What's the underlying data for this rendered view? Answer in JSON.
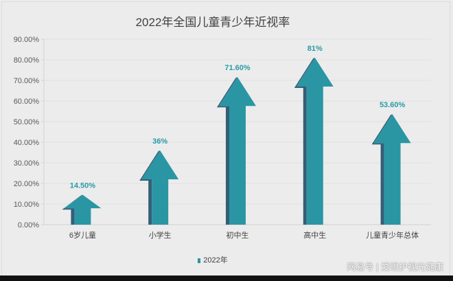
{
  "chart_data": {
    "type": "bar",
    "style": "3d-arrow",
    "title": "2022年全国儿童青少年近视率",
    "categories": [
      "6岁儿童",
      "小学生",
      "初中生",
      "高中生",
      "儿童青少年总体"
    ],
    "series": [
      {
        "name": "2022年",
        "values": [
          14.5,
          36,
          71.6,
          81,
          53.6
        ],
        "color": "#2a96a3"
      }
    ],
    "data_labels": [
      "14.50%",
      "36%",
      "71.60%",
      "81%",
      "53.60%"
    ],
    "xlabel": "",
    "ylabel": "",
    "ylim": [
      0,
      90
    ],
    "yticks": [
      "0.00%",
      "10.00%",
      "20.00%",
      "30.00%",
      "40.00%",
      "50.00%",
      "60.00%",
      "70.00%",
      "80.00%",
      "90.00%"
    ],
    "grid": true,
    "legend_position": "bottom"
  },
  "title": "2022年全国儿童青少年近视率",
  "legend": {
    "label": "2022年"
  },
  "watermark": "网易号 | 爱眼护视光健康"
}
